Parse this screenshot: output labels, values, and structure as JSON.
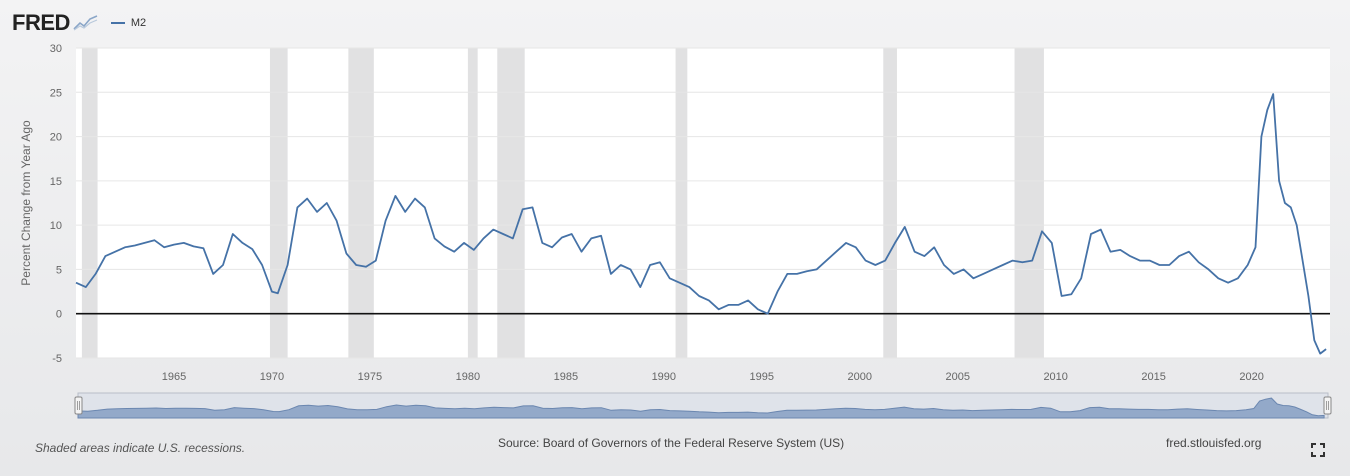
{
  "header": {
    "logo_text": "FRED",
    "legend_label": "M2"
  },
  "footer": {
    "note": "Shaded areas indicate U.S. recessions.",
    "source": "Source: Board of Governors of the Federal Reserve System (US)",
    "site": "fred.stlouisfed.org"
  },
  "icons": {
    "logo_chart": "chart-spark-icon",
    "fullscreen": "fullscreen-icon",
    "handles": "range-handle-icon"
  },
  "colors": {
    "series": "#4572a7",
    "recession": "#e1e1e2",
    "zero_line": "#111111"
  },
  "chart_data": {
    "type": "line",
    "title": "",
    "xlabel": "",
    "ylabel": "Percent Change from Year Ago",
    "xlim": [
      1960,
      2024
    ],
    "ylim": [
      -5,
      30
    ],
    "yticks": [
      -5,
      0,
      5,
      10,
      15,
      20,
      25,
      30
    ],
    "xticks": [
      1965,
      1970,
      1975,
      1980,
      1985,
      1990,
      1995,
      2000,
      2005,
      2010,
      2015,
      2020
    ],
    "grid": true,
    "legend": "top-left",
    "zero_line": 0,
    "recessions": [
      [
        1960.3,
        1961.1
      ],
      [
        1969.9,
        1970.8
      ],
      [
        1973.9,
        1975.2
      ],
      [
        1980.0,
        1980.5
      ],
      [
        1981.5,
        1982.9
      ],
      [
        1990.6,
        1991.2
      ],
      [
        2001.2,
        2001.9
      ],
      [
        2007.9,
        2009.4
      ]
    ],
    "series": [
      {
        "name": "M2",
        "x": [
          1960.0,
          1960.5,
          1961.0,
          1961.5,
          1962.0,
          1962.5,
          1963.0,
          1963.5,
          1964.0,
          1964.5,
          1965.0,
          1965.5,
          1966.0,
          1966.5,
          1967.0,
          1967.5,
          1968.0,
          1968.5,
          1969.0,
          1969.5,
          1970.0,
          1970.3,
          1970.8,
          1971.3,
          1971.8,
          1972.3,
          1972.8,
          1973.3,
          1973.8,
          1974.3,
          1974.8,
          1975.3,
          1975.8,
          1976.3,
          1976.8,
          1977.3,
          1977.8,
          1978.3,
          1978.8,
          1979.3,
          1979.8,
          1980.3,
          1980.8,
          1981.3,
          1981.8,
          1982.3,
          1982.8,
          1983.3,
          1983.8,
          1984.3,
          1984.8,
          1985.3,
          1985.8,
          1986.3,
          1986.8,
          1987.3,
          1987.8,
          1988.3,
          1988.8,
          1989.3,
          1989.8,
          1990.3,
          1990.8,
          1991.3,
          1991.8,
          1992.3,
          1992.8,
          1993.3,
          1993.8,
          1994.3,
          1994.8,
          1995.3,
          1995.8,
          1996.3,
          1996.8,
          1997.3,
          1997.8,
          1998.3,
          1998.8,
          1999.3,
          1999.8,
          2000.3,
          2000.8,
          2001.3,
          2001.8,
          2002.3,
          2002.8,
          2003.3,
          2003.8,
          2004.3,
          2004.8,
          2005.3,
          2005.8,
          2006.3,
          2006.8,
          2007.3,
          2007.8,
          2008.3,
          2008.8,
          2009.3,
          2009.8,
          2010.3,
          2010.8,
          2011.3,
          2011.8,
          2012.3,
          2012.8,
          2013.3,
          2013.8,
          2014.3,
          2014.8,
          2015.3,
          2015.8,
          2016.3,
          2016.8,
          2017.3,
          2017.8,
          2018.3,
          2018.8,
          2019.3,
          2019.8,
          2020.2,
          2020.5,
          2020.8,
          2021.1,
          2021.4,
          2021.7,
          2022.0,
          2022.3,
          2022.6,
          2022.9,
          2023.2,
          2023.5,
          2023.8
        ],
        "values": [
          3.5,
          3.0,
          4.5,
          6.5,
          7.0,
          7.5,
          7.7,
          8.0,
          8.3,
          7.5,
          7.8,
          8.0,
          7.6,
          7.4,
          4.5,
          5.5,
          9.0,
          8.0,
          7.3,
          5.5,
          2.5,
          2.3,
          5.5,
          12.0,
          13.0,
          11.5,
          12.5,
          10.5,
          6.8,
          5.5,
          5.3,
          6.0,
          10.5,
          13.3,
          11.5,
          13.0,
          12.0,
          8.5,
          7.6,
          7.0,
          8.0,
          7.2,
          8.5,
          9.5,
          9.0,
          8.5,
          11.8,
          12.0,
          8.0,
          7.5,
          8.6,
          9.0,
          7.0,
          8.5,
          8.8,
          4.5,
          5.5,
          5.0,
          3.0,
          5.5,
          5.8,
          4.0,
          3.5,
          3.0,
          2.0,
          1.5,
          0.5,
          1.0,
          1.0,
          1.5,
          0.5,
          0.0,
          2.5,
          4.5,
          4.5,
          4.8,
          5.0,
          6.0,
          7.0,
          8.0,
          7.5,
          6.0,
          5.5,
          6.0,
          8.0,
          9.8,
          7.0,
          6.5,
          7.5,
          5.5,
          4.5,
          5.0,
          4.0,
          4.5,
          5.0,
          5.5,
          6.0,
          5.8,
          6.0,
          9.3,
          8.0,
          2.0,
          2.2,
          4.0,
          9.0,
          9.5,
          7.0,
          7.2,
          6.5,
          6.0,
          6.0,
          5.5,
          5.5,
          6.5,
          7.0,
          5.8,
          5.0,
          4.0,
          3.5,
          4.0,
          5.5,
          7.5,
          20.0,
          23.0,
          24.8,
          15.0,
          12.5,
          12.0,
          10.0,
          6.0,
          2.0,
          -3.0,
          -4.5,
          -4.0
        ]
      }
    ]
  }
}
